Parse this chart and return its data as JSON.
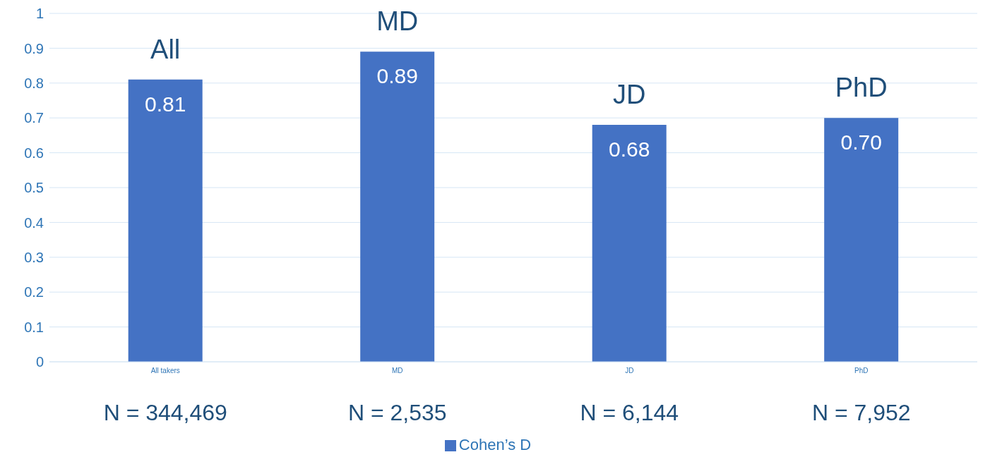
{
  "chart_data": {
    "type": "bar",
    "categories": [
      "All takers",
      "MD",
      "JD",
      "PhD"
    ],
    "series": [
      {
        "name": "Cohen’s D",
        "color": "#4472c4",
        "values": [
          0.81,
          0.89,
          0.68,
          0.7
        ],
        "value_labels": [
          "0.81",
          "0.89",
          "0.68",
          "0.70"
        ]
      }
    ],
    "ylim": [
      0,
      1
    ],
    "yticks": [
      0,
      0.1,
      0.2,
      0.3,
      0.4,
      0.5,
      0.6,
      0.7,
      0.8,
      0.9,
      1
    ],
    "grid": "y",
    "legend": "bottom",
    "annotations": [
      "All",
      "MD",
      "JD",
      "PhD",
      "N = 344,469",
      "N = 2,535",
      "N = 6,144",
      "N = 7,952"
    ]
  }
}
